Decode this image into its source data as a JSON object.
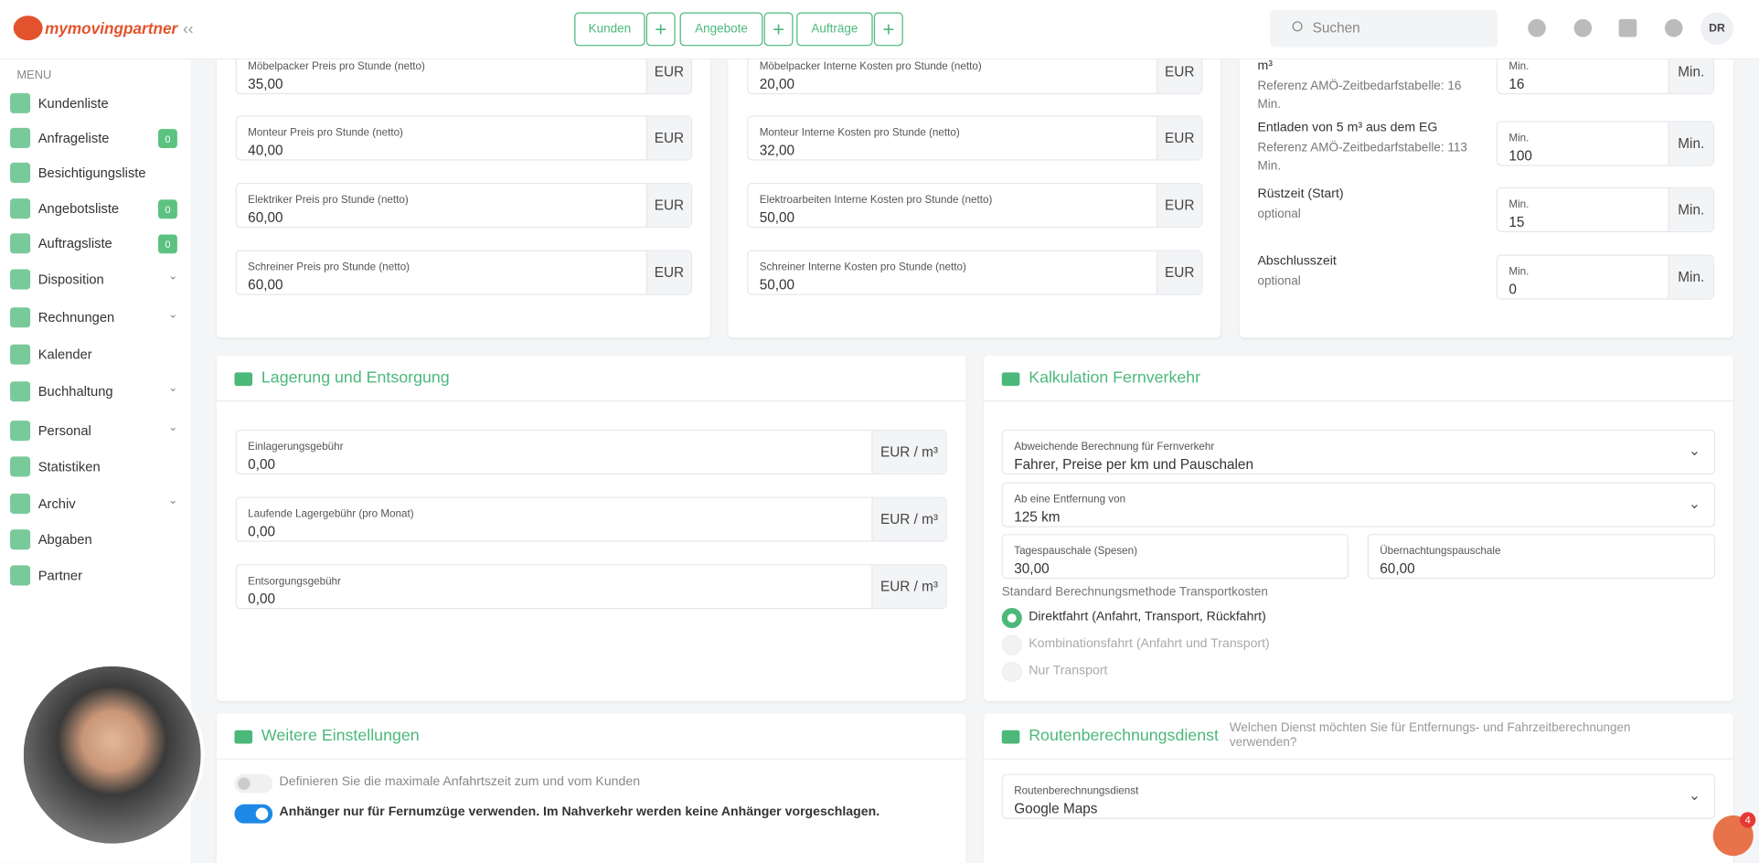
{
  "header": {
    "logo": "mymovingpartner",
    "nav": [
      "Kunden",
      "Angebote",
      "Aufträge"
    ],
    "search_placeholder": "Suchen",
    "avatar": "DR",
    "help_badge": "4"
  },
  "sidebar": {
    "menu_title": "MENU",
    "items": [
      {
        "label": "Kundenliste"
      },
      {
        "label": "Anfrageliste",
        "badge": "0"
      },
      {
        "label": "Besichtigungsliste"
      },
      {
        "label": "Angebotsliste",
        "badge": "0"
      },
      {
        "label": "Auftragsliste",
        "badge": "0"
      },
      {
        "label": "Disposition",
        "submenu": true
      },
      {
        "label": "Rechnungen",
        "submenu": true
      },
      {
        "label": "Kalender"
      },
      {
        "label": "Buchhaltung",
        "submenu": true
      },
      {
        "label": "Personal",
        "submenu": true
      },
      {
        "label": "Statistiken"
      },
      {
        "label": "Archiv",
        "submenu": true
      },
      {
        "label": "Abgaben"
      },
      {
        "label": "Partner"
      }
    ]
  },
  "top_panels": [
    {
      "fields": [
        {
          "label": "Möbelpacker Preis pro Stunde (netto)",
          "value": "35,00",
          "unit": "EUR"
        },
        {
          "label": "Monteur Preis pro Stunde (netto)",
          "value": "40,00",
          "unit": "EUR"
        },
        {
          "label": "Elektriker Preis pro Stunde (netto)",
          "value": "60,00",
          "unit": "EUR"
        },
        {
          "label": "Schreiner Preis pro Stunde (netto)",
          "value": "60,00",
          "unit": "EUR"
        }
      ]
    },
    {
      "fields": [
        {
          "label": "Möbelpacker Interne Kosten pro Stunde (netto)",
          "value": "20,00",
          "unit": "EUR"
        },
        {
          "label": "Monteur Interne Kosten pro Stunde (netto)",
          "value": "32,00",
          "unit": "EUR"
        },
        {
          "label": "Elektroarbeiten Interne Kosten pro Stunde (netto)",
          "value": "50,00",
          "unit": "EUR"
        },
        {
          "label": "Schreiner Interne Kosten pro Stunde (netto)",
          "value": "50,00",
          "unit": "EUR"
        }
      ]
    }
  ],
  "time_panel": {
    "rows": [
      {
        "title": "m³",
        "note": "Referenz AMÖ-Zeitbedarfstabelle: 16 Min.",
        "input_label": "Min.",
        "value": "16",
        "unit": "Min."
      },
      {
        "title": "Entladen von 5 m³ aus dem EG",
        "note": "Referenz AMÖ-Zeitbedarfstabelle: 113 Min.",
        "input_label": "Min.",
        "value": "100",
        "unit": "Min."
      },
      {
        "title": "Rüstzeit (Start)",
        "note": "optional",
        "input_label": "Min.",
        "value": "15",
        "unit": "Min."
      },
      {
        "title": "Abschlusszeit",
        "note": "optional",
        "input_label": "Min.",
        "value": "0",
        "unit": "Min."
      }
    ]
  },
  "lagerung": {
    "title": "Lagerung und Entsorgung",
    "fields": [
      {
        "label": "Einlagerungsgebühr",
        "value": "0,00",
        "unit": "EUR / m³"
      },
      {
        "label": "Laufende Lagergebühr (pro Monat)",
        "value": "0,00",
        "unit": "EUR / m³"
      },
      {
        "label": "Entsorgungsgebühr",
        "value": "0,00",
        "unit": "EUR / m³"
      }
    ]
  },
  "fernverkehr": {
    "title": "Kalkulation Fernverkehr",
    "selects": [
      {
        "label": "Abweichende Berechnung für Fernverkehr",
        "value": "Fahrer, Preise per km und Pauschalen"
      },
      {
        "label": "Ab eine Entfernung von",
        "value": "125 km"
      }
    ],
    "fields": [
      {
        "label": "Tagespauschale (Spesen)",
        "value": "30,00"
      },
      {
        "label": "Übernachtungspauschale",
        "value": "60,00"
      }
    ],
    "radio_title": "Standard Berechnungsmethode Transportkosten",
    "radios": [
      {
        "label": "Direktfahrt (Anfahrt, Transport, Rückfahrt)",
        "checked": true
      },
      {
        "label": "Kombinationsfahrt (Anfahrt und Transport)",
        "checked": false
      },
      {
        "label": "Nur Transport",
        "checked": false
      }
    ]
  },
  "weitere": {
    "title": "Weitere Einstellungen",
    "toggles": [
      {
        "label": "Definieren Sie die maximale Anfahrtszeit zum und vom Kunden",
        "on": false
      },
      {
        "label": "Anhänger nur für Fernumzüge verwenden. Im Nahverkehr werden keine Anhänger vorgeschlagen.",
        "on": true
      }
    ]
  },
  "route": {
    "title": "Routenberechnungsdienst",
    "subtitle": "Welchen Dienst möchten Sie für Entfernungs- und Fahrzeitberechnungen verwenden?",
    "select": {
      "label": "Routenberechnungsdienst",
      "value": "Google Maps"
    }
  }
}
